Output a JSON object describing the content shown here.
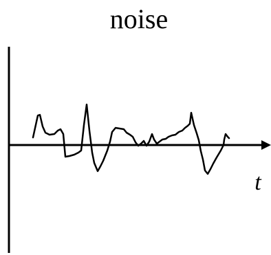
{
  "title": "noise",
  "axis": {
    "horizontal_label": "t"
  },
  "colors": {
    "ink": "#000000",
    "background": "#ffffff"
  }
}
